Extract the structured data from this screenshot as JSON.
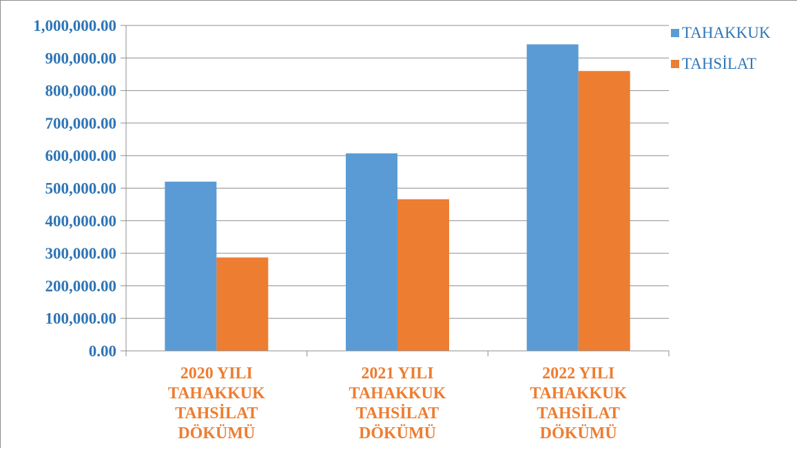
{
  "chart_data": {
    "type": "bar",
    "title": "",
    "xlabel": "",
    "ylabel": "",
    "categories": [
      [
        "2020 YILI",
        "TAHAKKUK",
        "TAHSİLAT",
        "DÖKÜMÜ"
      ],
      [
        "2021 YILI",
        "TAHAKKUK",
        "TAHSİLAT",
        "DÖKÜMÜ"
      ],
      [
        "2022 YILI",
        "TAHAKKUK",
        "TAHSİLAT",
        "DÖKÜMÜ"
      ]
    ],
    "series": [
      {
        "name": "TAHAKKUK",
        "color": "#5b9bd5",
        "values": [
          520000,
          607000,
          942000
        ]
      },
      {
        "name": "TAHSİLAT",
        "color": "#ed7d31",
        "values": [
          287000,
          466000,
          860000
        ]
      }
    ],
    "ylim": [
      0,
      1000000
    ],
    "yticks": [
      0,
      100000,
      200000,
      300000,
      400000,
      500000,
      600000,
      700000,
      800000,
      900000,
      1000000
    ],
    "ytick_labels": [
      "0.00",
      "100,000.00",
      "200,000.00",
      "300,000.00",
      "400,000.00",
      "500,000.00",
      "600,000.00",
      "700,000.00",
      "800,000.00",
      "900,000.00",
      "1,000,000.00"
    ],
    "grid": true,
    "legend_position": "top-right",
    "axis_label_color": "#2e75b6",
    "category_label_color": "#ed7d31"
  }
}
